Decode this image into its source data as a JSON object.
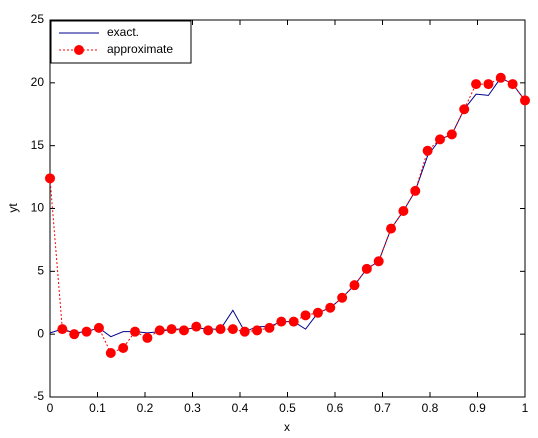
{
  "chart_data": {
    "type": "line",
    "x_label": "x",
    "y_label": "yt",
    "x": [
      0,
      0.026,
      0.051,
      0.077,
      0.103,
      0.128,
      0.154,
      0.179,
      0.205,
      0.231,
      0.256,
      0.282,
      0.308,
      0.333,
      0.359,
      0.385,
      0.41,
      0.436,
      0.462,
      0.487,
      0.513,
      0.538,
      0.564,
      0.59,
      0.615,
      0.641,
      0.667,
      0.692,
      0.718,
      0.744,
      0.769,
      0.795,
      0.821,
      0.846,
      0.872,
      0.897,
      0.923,
      0.949,
      0.974,
      1
    ],
    "series": [
      {
        "name": "exact.",
        "color": "#00008b",
        "style": "solid",
        "marker": false,
        "values": [
          0.1,
          0.4,
          0.1,
          0.2,
          0.5,
          -0.2,
          0.2,
          0.2,
          0.1,
          0.2,
          0.4,
          0.4,
          0.5,
          0.4,
          0.4,
          1.9,
          0.2,
          0.6,
          0.6,
          1.0,
          1.0,
          0.4,
          1.7,
          2.1,
          2.9,
          3.9,
          5.2,
          5.8,
          8.4,
          9.8,
          11.4,
          14.2,
          15.5,
          15.9,
          17.9,
          19.1,
          19.0,
          20.4,
          19.9,
          18.6
        ]
      },
      {
        "name": "approximate",
        "color": "#ff0000",
        "style": "dotted",
        "marker": true,
        "values": [
          12.4,
          0.4,
          0.0,
          0.2,
          0.5,
          -1.5,
          -1.1,
          0.2,
          -0.3,
          0.3,
          0.4,
          0.3,
          0.6,
          0.3,
          0.4,
          0.4,
          0.2,
          0.3,
          0.5,
          1.0,
          1.0,
          1.5,
          1.7,
          2.1,
          2.9,
          3.9,
          5.2,
          5.8,
          8.4,
          9.8,
          11.4,
          14.6,
          15.5,
          15.9,
          17.9,
          19.9,
          19.9,
          20.4,
          19.9,
          18.6
        ]
      }
    ],
    "xlim": [
      0,
      1
    ],
    "xticks": [
      0,
      0.1,
      0.2,
      0.3,
      0.4,
      0.5,
      0.6,
      0.7,
      0.8,
      0.9,
      1
    ],
    "ylim": [
      -5,
      25
    ],
    "yticks": [
      -5,
      0,
      5,
      10,
      15,
      20,
      25
    ],
    "grid": false,
    "legend": "top-left"
  }
}
